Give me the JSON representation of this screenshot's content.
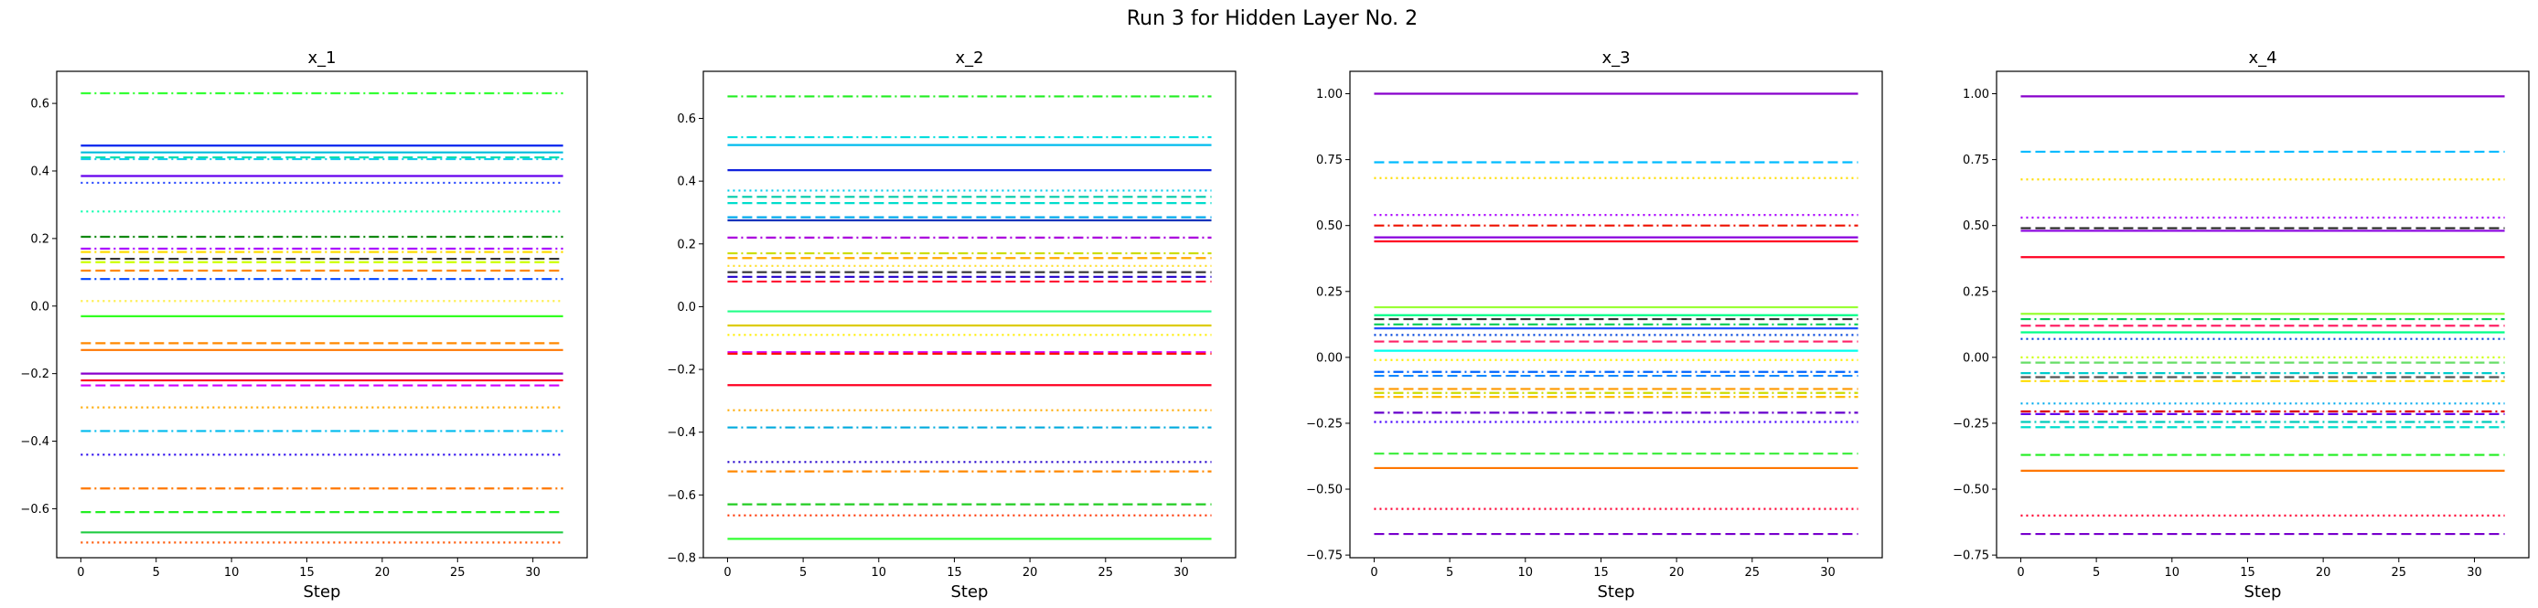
{
  "figure": {
    "suptitle": "Run 3 for Hidden Layer No. 2"
  },
  "chart_data": [
    {
      "type": "line",
      "title": "x_1",
      "xlabel": "Step",
      "ylabel": "",
      "xlim": [
        -1.6,
        33.6
      ],
      "ylim": [
        -0.745,
        0.695
      ],
      "xticks": [
        0,
        5,
        10,
        15,
        20,
        25,
        30
      ],
      "yticks": [
        -0.6,
        -0.4,
        -0.2,
        0.0,
        0.2,
        0.4,
        0.6
      ],
      "ytick_labels": [
        "−0.6",
        "−0.4",
        "−0.2",
        "0.0",
        "0.2",
        "0.4",
        "0.6"
      ],
      "x_range": [
        0,
        32
      ],
      "series": [
        {
          "value": 0.63,
          "color": "#33ff33",
          "dash": "dashdot"
        },
        {
          "value": 0.475,
          "color": "#0022ee",
          "dash": "solid"
        },
        {
          "value": 0.455,
          "color": "#00bbdd",
          "dash": "solid"
        },
        {
          "value": 0.44,
          "color": "#00ddaa",
          "dash": "dashed"
        },
        {
          "value": 0.435,
          "color": "#11ccee",
          "dash": "dashdot"
        },
        {
          "value": 0.385,
          "color": "#6600ee",
          "dash": "solid"
        },
        {
          "value": 0.365,
          "color": "#2244ff",
          "dash": "dotted"
        },
        {
          "value": 0.28,
          "color": "#00ffaa",
          "dash": "dotted"
        },
        {
          "value": 0.205,
          "color": "#118811",
          "dash": "dashdot"
        },
        {
          "value": 0.17,
          "color": "#aa00ff",
          "dash": "dashdot"
        },
        {
          "value": 0.16,
          "color": "#ffdd00",
          "dash": "dashdot"
        },
        {
          "value": 0.14,
          "color": "#333333",
          "dash": "dashed"
        },
        {
          "value": 0.13,
          "color": "#ccff00",
          "dash": "dashed"
        },
        {
          "value": 0.105,
          "color": "#ff8800",
          "dash": "dashed"
        },
        {
          "value": 0.08,
          "color": "#0044ff",
          "dash": "dashdot"
        },
        {
          "value": 0.015,
          "color": "#ffee44",
          "dash": "dotted"
        },
        {
          "value": -0.03,
          "color": "#33ff22",
          "dash": "solid"
        },
        {
          "value": -0.11,
          "color": "#ff8800",
          "dash": "dashed"
        },
        {
          "value": -0.13,
          "color": "#ff7700",
          "dash": "solid"
        },
        {
          "value": -0.2,
          "color": "#8800cc",
          "dash": "solid"
        },
        {
          "value": -0.22,
          "color": "#ff0022",
          "dash": "solid"
        },
        {
          "value": -0.235,
          "color": "#cc00ff",
          "dash": "dashed"
        },
        {
          "value": -0.3,
          "color": "#ffaa00",
          "dash": "dotted"
        },
        {
          "value": -0.37,
          "color": "#00bbee",
          "dash": "dashdot"
        },
        {
          "value": -0.44,
          "color": "#2200ee",
          "dash": "dotted"
        },
        {
          "value": -0.54,
          "color": "#ff7700",
          "dash": "dashdot"
        },
        {
          "value": -0.61,
          "color": "#22ee22",
          "dash": "dashed"
        },
        {
          "value": -0.67,
          "color": "#22cc44",
          "dash": "solid"
        },
        {
          "value": -0.7,
          "color": "#ff5500",
          "dash": "dotted"
        }
      ]
    },
    {
      "type": "line",
      "title": "x_2",
      "xlabel": "Step",
      "ylabel": "",
      "xlim": [
        -1.6,
        33.6
      ],
      "ylim": [
        -0.8,
        0.75
      ],
      "xticks": [
        0,
        5,
        10,
        15,
        20,
        25,
        30
      ],
      "yticks": [
        -0.8,
        -0.6,
        -0.4,
        -0.2,
        0.0,
        0.2,
        0.4,
        0.6
      ],
      "ytick_labels": [
        "−0.8",
        "−0.6",
        "−0.4",
        "−0.2",
        "0.0",
        "0.2",
        "0.4",
        "0.6"
      ],
      "x_range": [
        0,
        32
      ],
      "series": [
        {
          "value": 0.67,
          "color": "#22ee22",
          "dash": "dashdot"
        },
        {
          "value": 0.54,
          "color": "#00dddd",
          "dash": "dashdot"
        },
        {
          "value": 0.515,
          "color": "#00bbee",
          "dash": "solid"
        },
        {
          "value": 0.435,
          "color": "#1122dd",
          "dash": "solid"
        },
        {
          "value": 0.37,
          "color": "#00ccee",
          "dash": "dotted"
        },
        {
          "value": 0.35,
          "color": "#00ccaa",
          "dash": "dashed"
        },
        {
          "value": 0.33,
          "color": "#00ddcc",
          "dash": "dashed"
        },
        {
          "value": 0.285,
          "color": "#00aaee",
          "dash": "dashed"
        },
        {
          "value": 0.275,
          "color": "#1133bb",
          "dash": "solid"
        },
        {
          "value": 0.22,
          "color": "#aa00dd",
          "dash": "dashdot"
        },
        {
          "value": 0.17,
          "color": "#ccdd00",
          "dash": "dashdot"
        },
        {
          "value": 0.155,
          "color": "#ffaa00",
          "dash": "dashed"
        },
        {
          "value": 0.13,
          "color": "#ffdd22",
          "dash": "dotted"
        },
        {
          "value": 0.11,
          "color": "#333333",
          "dash": "dashed"
        },
        {
          "value": 0.095,
          "color": "#2200cc",
          "dash": "dashed"
        },
        {
          "value": 0.08,
          "color": "#ff1133",
          "dash": "dashed"
        },
        {
          "value": -0.015,
          "color": "#22ff88",
          "dash": "solid"
        },
        {
          "value": -0.06,
          "color": "#ddcc00",
          "dash": "solid"
        },
        {
          "value": -0.09,
          "color": "#ffee00",
          "dash": "dotted"
        },
        {
          "value": -0.145,
          "color": "#cc00ff",
          "dash": "dashed"
        },
        {
          "value": -0.15,
          "color": "#ff1100",
          "dash": "dashed"
        },
        {
          "value": -0.25,
          "color": "#ff0022",
          "dash": "solid"
        },
        {
          "value": -0.33,
          "color": "#ffaa00",
          "dash": "dotted"
        },
        {
          "value": -0.385,
          "color": "#00aadd",
          "dash": "dashdot"
        },
        {
          "value": -0.495,
          "color": "#2200cc",
          "dash": "dotted"
        },
        {
          "value": -0.525,
          "color": "#ff8800",
          "dash": "dashdot"
        },
        {
          "value": -0.63,
          "color": "#22cc22",
          "dash": "dashed"
        },
        {
          "value": -0.665,
          "color": "#ff3300",
          "dash": "dotted"
        },
        {
          "value": -0.74,
          "color": "#33ff33",
          "dash": "solid"
        }
      ]
    },
    {
      "type": "line",
      "title": "x_3",
      "xlabel": "Step",
      "ylabel": "",
      "xlim": [
        -1.6,
        33.6
      ],
      "ylim": [
        -0.76,
        1.085
      ],
      "xticks": [
        0,
        5,
        10,
        15,
        20,
        25,
        30
      ],
      "yticks": [
        -0.75,
        -0.5,
        -0.25,
        0.0,
        0.25,
        0.5,
        0.75,
        1.0
      ],
      "ytick_labels": [
        "−0.75",
        "−0.50",
        "−0.25",
        "0.00",
        "0.25",
        "0.50",
        "0.75",
        "1.00"
      ],
      "x_range": [
        0,
        32
      ],
      "series": [
        {
          "value": 1.0,
          "color": "#8800cc",
          "dash": "solid"
        },
        {
          "value": 0.74,
          "color": "#00bbff",
          "dash": "dashed"
        },
        {
          "value": 0.68,
          "color": "#ffdd00",
          "dash": "dotted"
        },
        {
          "value": 0.54,
          "color": "#aa00ff",
          "dash": "dotted"
        },
        {
          "value": 0.5,
          "color": "#ee1100",
          "dash": "dashdot"
        },
        {
          "value": 0.455,
          "color": "#8800dd",
          "dash": "solid"
        },
        {
          "value": 0.44,
          "color": "#ff0022",
          "dash": "solid"
        },
        {
          "value": 0.19,
          "color": "#99ff33",
          "dash": "solid"
        },
        {
          "value": 0.16,
          "color": "#00ff88",
          "dash": "solid"
        },
        {
          "value": 0.145,
          "color": "#333333",
          "dash": "dashed"
        },
        {
          "value": 0.125,
          "color": "#00cc55",
          "dash": "dashdot"
        },
        {
          "value": 0.11,
          "color": "#2255ff",
          "dash": "solid"
        },
        {
          "value": 0.085,
          "color": "#0044dd",
          "dash": "dotted"
        },
        {
          "value": 0.06,
          "color": "#ff2266",
          "dash": "dashed"
        },
        {
          "value": 0.025,
          "color": "#00ffee",
          "dash": "solid"
        },
        {
          "value": -0.01,
          "color": "#ffee00",
          "dash": "dotted"
        },
        {
          "value": -0.055,
          "color": "#0066ff",
          "dash": "dashdot"
        },
        {
          "value": -0.07,
          "color": "#1188ff",
          "dash": "dashed"
        },
        {
          "value": -0.12,
          "color": "#ff9900",
          "dash": "dashed"
        },
        {
          "value": -0.135,
          "color": "#ccdd00",
          "dash": "dashdot"
        },
        {
          "value": -0.15,
          "color": "#ffbb00",
          "dash": "dashdot"
        },
        {
          "value": -0.21,
          "color": "#6600cc",
          "dash": "dashdot"
        },
        {
          "value": -0.245,
          "color": "#4400ff",
          "dash": "dotted"
        },
        {
          "value": -0.365,
          "color": "#44ee44",
          "dash": "dashed"
        },
        {
          "value": -0.42,
          "color": "#ff7700",
          "dash": "solid"
        },
        {
          "value": -0.575,
          "color": "#ff0033",
          "dash": "dotted"
        },
        {
          "value": -0.67,
          "color": "#7700cc",
          "dash": "dashed"
        }
      ]
    },
    {
      "type": "line",
      "title": "x_4",
      "xlabel": "Step",
      "ylabel": "",
      "xlim": [
        -1.6,
        33.6
      ],
      "ylim": [
        -0.76,
        1.085
      ],
      "xticks": [
        0,
        5,
        10,
        15,
        20,
        25,
        30
      ],
      "yticks": [
        -0.75,
        -0.5,
        -0.25,
        0.0,
        0.25,
        0.5,
        0.75,
        1.0
      ],
      "ytick_labels": [
        "−0.75",
        "−0.50",
        "−0.25",
        "0.00",
        "0.25",
        "0.50",
        "0.75",
        "1.00"
      ],
      "x_range": [
        0,
        32
      ],
      "series": [
        {
          "value": 0.99,
          "color": "#8800cc",
          "dash": "solid"
        },
        {
          "value": 0.78,
          "color": "#00bbff",
          "dash": "dashed"
        },
        {
          "value": 0.675,
          "color": "#ffdd00",
          "dash": "dotted"
        },
        {
          "value": 0.53,
          "color": "#aa00ff",
          "dash": "dotted"
        },
        {
          "value": 0.49,
          "color": "#222222",
          "dash": "dashed"
        },
        {
          "value": 0.48,
          "color": "#8800dd",
          "dash": "solid"
        },
        {
          "value": 0.38,
          "color": "#ff0022",
          "dash": "solid"
        },
        {
          "value": 0.165,
          "color": "#99ff33",
          "dash": "solid"
        },
        {
          "value": 0.145,
          "color": "#00cc55",
          "dash": "dashdot"
        },
        {
          "value": 0.12,
          "color": "#ff2266",
          "dash": "dashed"
        },
        {
          "value": 0.095,
          "color": "#00ff88",
          "dash": "solid"
        },
        {
          "value": 0.07,
          "color": "#0044dd",
          "dash": "dotted"
        },
        {
          "value": 0.0,
          "color": "#ccff00",
          "dash": "dotted"
        },
        {
          "value": -0.02,
          "color": "#66dd66",
          "dash": "dashed"
        },
        {
          "value": -0.06,
          "color": "#00cccc",
          "dash": "dashdot"
        },
        {
          "value": -0.075,
          "color": "#555555",
          "dash": "dashed"
        },
        {
          "value": -0.09,
          "color": "#ffdd00",
          "dash": "dashdot"
        },
        {
          "value": -0.175,
          "color": "#00aaee",
          "dash": "dotted"
        },
        {
          "value": -0.205,
          "color": "#dd0000",
          "dash": "dashdot"
        },
        {
          "value": -0.215,
          "color": "#6600ee",
          "dash": "dashed"
        },
        {
          "value": -0.245,
          "color": "#00ccbb",
          "dash": "dashdot"
        },
        {
          "value": -0.265,
          "color": "#00ddcc",
          "dash": "dashed"
        },
        {
          "value": -0.37,
          "color": "#22ee22",
          "dash": "dashed"
        },
        {
          "value": -0.43,
          "color": "#ff7700",
          "dash": "solid"
        },
        {
          "value": -0.6,
          "color": "#ff0033",
          "dash": "dotted"
        },
        {
          "value": -0.67,
          "color": "#7700cc",
          "dash": "dashed"
        }
      ]
    }
  ]
}
